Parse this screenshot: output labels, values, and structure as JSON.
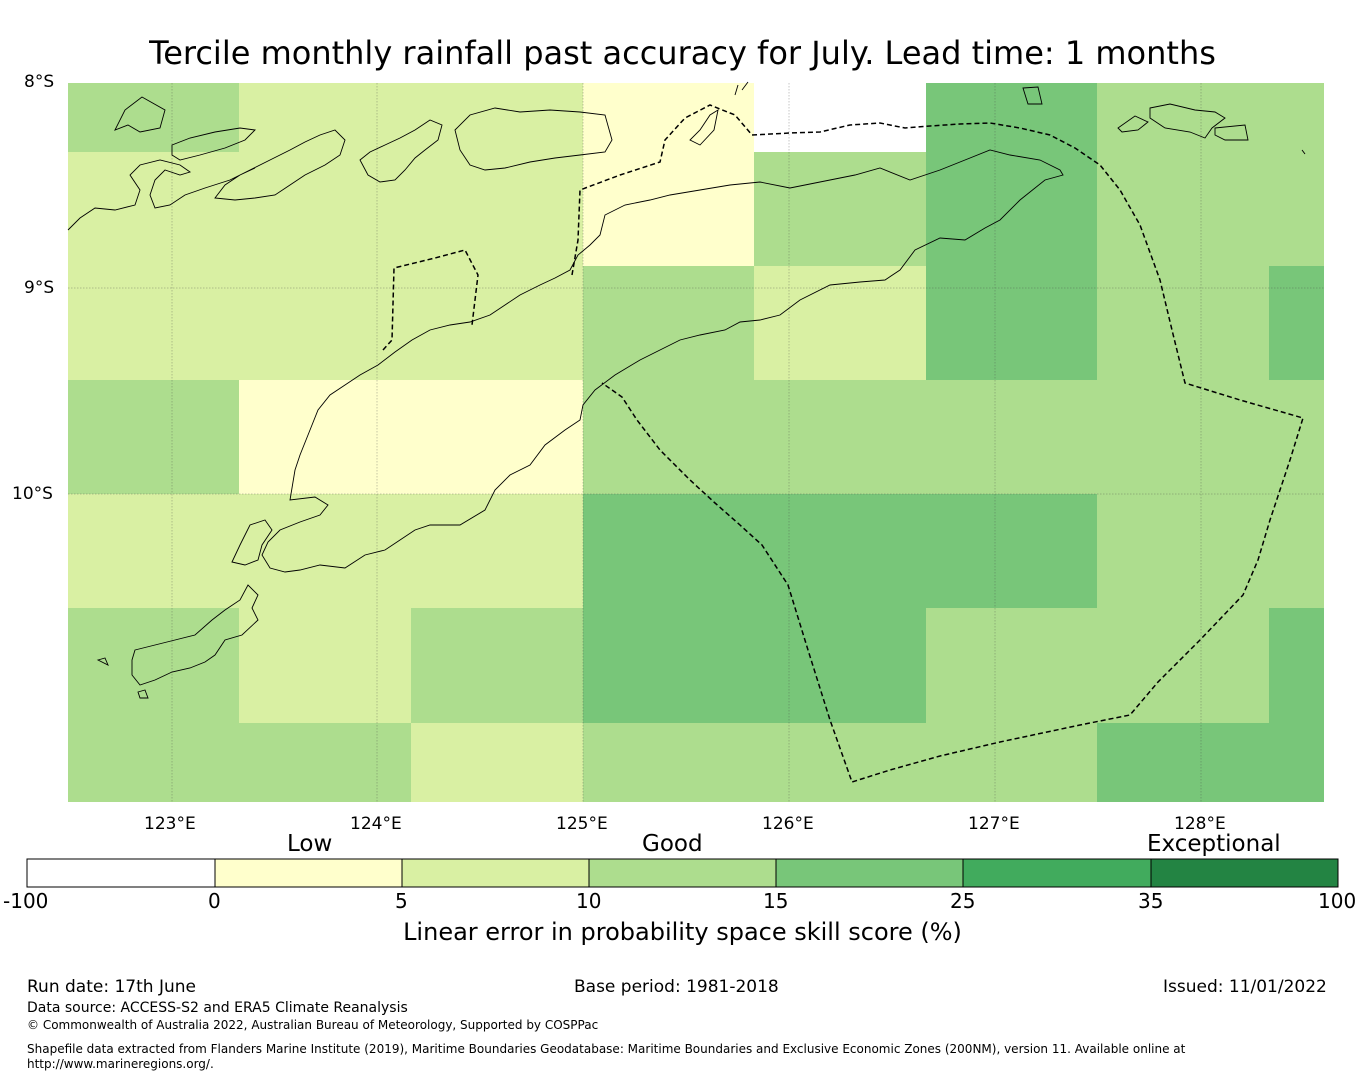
{
  "title": "Tercile monthly rainfall past accuracy for July. Lead time: 1 months",
  "map": {
    "lat_labels": [
      "8°S",
      "9°S",
      "10°S"
    ],
    "lon_labels": [
      "123°E",
      "124°E",
      "125°E",
      "126°E",
      "127°E",
      "128°E"
    ],
    "lon_range": [
      122.5,
      128.6
    ],
    "lat_range": [
      -8.0,
      -11.5
    ]
  },
  "legend": {
    "categories": [
      "Low",
      "Good",
      "Exceptional"
    ],
    "ticks": [
      "-100",
      "0",
      "5",
      "10",
      "15",
      "25",
      "35",
      "100"
    ],
    "colors": [
      "#ffffff",
      "#ffffcc",
      "#d9f0a3",
      "#addd8e",
      "#78c679",
      "#41ab5d",
      "#238443"
    ],
    "label": "Linear error in probability space skill score (%)"
  },
  "footer": {
    "run_date": "Run date: 17th June",
    "base_period": "Base period: 1981-2018",
    "issued": "Issued: 11/01/2022",
    "data_source": "Data source: ACCESS-S2 and ERA5 Climate Reanalysis",
    "copyright": "© Commonwealth of Australia 2022, Australian Bureau of Meteorology, Supported by COSPPac",
    "shapefile_line1": "Shapefile data extracted from Flanders Marine Institute (2019), Maritime Boundaries Geodatabase: Maritime Boundaries and Exclusive Economic Zones (200NM), version 11. Available online at",
    "shapefile_line2": "http://www.marineregions.org/."
  }
}
